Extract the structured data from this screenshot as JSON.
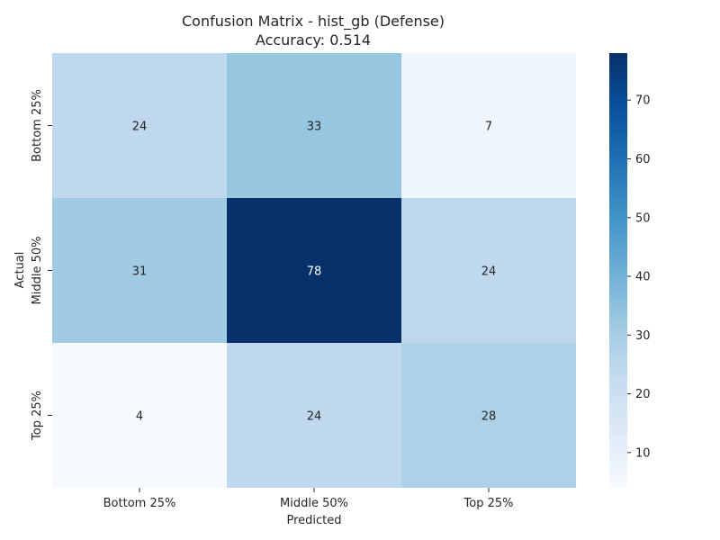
{
  "chart_data": {
    "type": "heatmap",
    "title": "Confusion Matrix - hist_gb (Defense)",
    "subtitle": "Accuracy: 0.514",
    "xlabel": "Predicted",
    "ylabel": "Actual",
    "x_categories": [
      "Bottom 25%",
      "Middle 50%",
      "Top 25%"
    ],
    "y_categories": [
      "Bottom 25%",
      "Middle 50%",
      "Top 25%"
    ],
    "values": [
      [
        24,
        33,
        7
      ],
      [
        31,
        78,
        24
      ],
      [
        4,
        24,
        28
      ]
    ],
    "colormap": "Blues",
    "color_range": [
      4,
      78
    ],
    "colorbar_ticks": [
      10,
      20,
      30,
      40,
      50,
      60,
      70
    ]
  }
}
